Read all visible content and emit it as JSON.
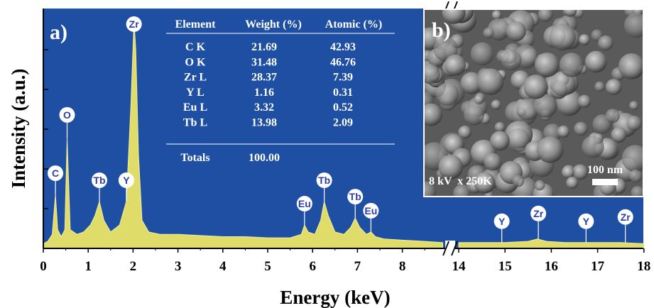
{
  "chart_data": {
    "type": "area",
    "panel_a_label": "a)",
    "panel_b_label": "b)",
    "xlabel": "Energy (keV)",
    "ylabel": "Intensity (a.u.)",
    "x_ticks_left": [
      "0",
      "1",
      "2",
      "3",
      "4",
      "5",
      "6",
      "7",
      "8"
    ],
    "x_ticks_right": [
      "14",
      "15",
      "16",
      "17",
      "18"
    ],
    "axis_break_between": [
      8.9,
      14
    ],
    "background_color": "#1f4fa3",
    "fill_color": "#e0dc6a",
    "spectrum_segments": [
      {
        "x": [
          0.0,
          0.1,
          0.2,
          0.27,
          0.32,
          0.4,
          0.48,
          0.53,
          0.6,
          0.75,
          0.9,
          1.05,
          1.15,
          1.25,
          1.35,
          1.5,
          1.7,
          1.85,
          1.95,
          2.02,
          2.06,
          2.12,
          2.2,
          2.35,
          2.6,
          3.0,
          3.5,
          4.0,
          4.5,
          5.0,
          5.5,
          5.75,
          5.82,
          5.9,
          6.05,
          6.18,
          6.26,
          6.35,
          6.5,
          6.7,
          6.85,
          6.95,
          7.05,
          7.2,
          7.3,
          7.4,
          7.6,
          8.0,
          8.5,
          8.9
        ],
        "y": [
          0.02,
          0.03,
          0.06,
          0.23,
          0.08,
          0.05,
          0.08,
          0.47,
          0.08,
          0.06,
          0.07,
          0.1,
          0.14,
          0.2,
          0.12,
          0.07,
          0.1,
          0.2,
          0.6,
          0.97,
          0.85,
          0.4,
          0.12,
          0.07,
          0.06,
          0.06,
          0.055,
          0.05,
          0.05,
          0.045,
          0.045,
          0.06,
          0.1,
          0.07,
          0.06,
          0.12,
          0.2,
          0.14,
          0.07,
          0.06,
          0.09,
          0.13,
          0.09,
          0.06,
          0.07,
          0.05,
          0.04,
          0.035,
          0.03,
          0.025
        ]
      },
      {
        "x": [
          14.0,
          14.5,
          15.0,
          15.5,
          15.7,
          15.9,
          16.3,
          16.7,
          17.0,
          17.5,
          18.0
        ],
        "y": [
          0.025,
          0.025,
          0.025,
          0.03,
          0.04,
          0.03,
          0.025,
          0.025,
          0.025,
          0.025,
          0.02
        ]
      }
    ],
    "peak_markers": [
      {
        "label": "C",
        "x": 0.27,
        "y": 0.23
      },
      {
        "label": "O",
        "x": 0.53,
        "y": 0.47
      },
      {
        "label": "Tb",
        "x": 1.25,
        "y": 0.2
      },
      {
        "label": "Y",
        "x": 1.85,
        "y": 0.2
      },
      {
        "label": "Zr",
        "x": 2.02,
        "y": 0.97
      },
      {
        "label": "Eu",
        "x": 5.82,
        "y": 0.1
      },
      {
        "label": "Tb",
        "x": 6.26,
        "y": 0.2
      },
      {
        "label": "Tb",
        "x": 6.95,
        "y": 0.13
      },
      {
        "label": "Eu",
        "x": 7.3,
        "y": 0.07
      },
      {
        "label": "Y",
        "x": 14.93,
        "y": 0.025
      },
      {
        "label": "Zr",
        "x": 15.72,
        "y": 0.04
      },
      {
        "label": "Y",
        "x": 16.75,
        "y": 0.025
      },
      {
        "label": "Zr",
        "x": 17.6,
        "y": 0.025
      }
    ],
    "table": {
      "headers": [
        "Element",
        "Weight (%)",
        "Atomic (%)"
      ],
      "rows": [
        [
          "C K",
          "21.69",
          "42.93"
        ],
        [
          "O K",
          "31.48",
          "46.76"
        ],
        [
          "Zr L",
          "28.37",
          "7.39"
        ],
        [
          "Y L",
          "1.16",
          "0.31"
        ],
        [
          "Eu L",
          "3.32",
          "0.52"
        ],
        [
          "Tb L",
          "13.98",
          "2.09"
        ]
      ],
      "totals_label": "Totals",
      "totals_value": "100.00"
    },
    "sem_inset": {
      "label_conditions": "8 kV  x 250K",
      "scale_bar_label": "100 nm"
    }
  }
}
